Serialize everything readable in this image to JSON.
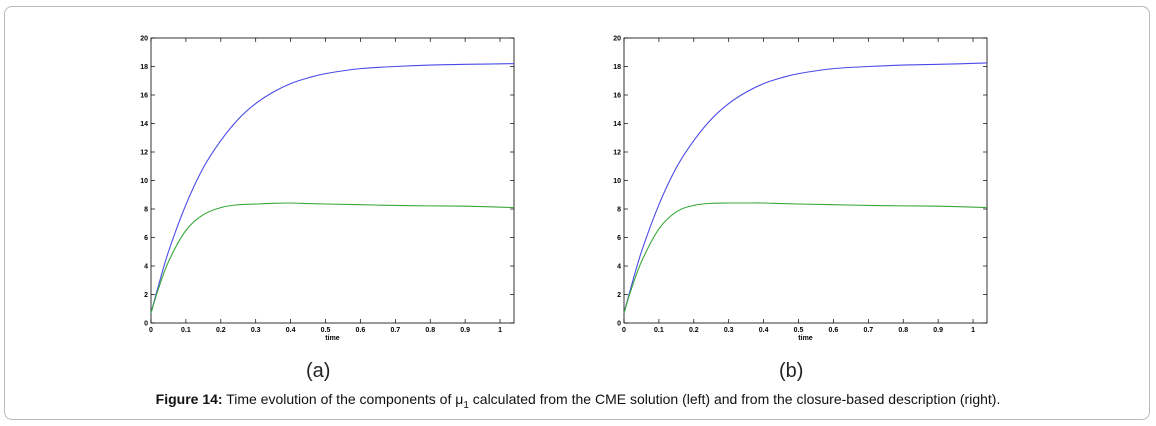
{
  "figure": {
    "panel_labels": [
      "(a)",
      "(b)"
    ],
    "caption": {
      "label": "Figure 14:",
      "text_before": " Time evolution of the components of μ",
      "subscript": "1",
      "text_after": " calculated from the CME solution (left) and from the closure-based description (right)."
    }
  },
  "chart_data": [
    {
      "type": "line",
      "xlabel": "time",
      "ylabel": "",
      "xlim": [
        0,
        1.04
      ],
      "ylim": [
        0,
        20
      ],
      "xticks": [
        0,
        0.1,
        0.2,
        0.3,
        0.4,
        0.5,
        0.6,
        0.7,
        0.8,
        0.9,
        1
      ],
      "yticks": [
        0,
        2,
        4,
        6,
        8,
        10,
        12,
        14,
        16,
        18,
        20
      ],
      "grid": false,
      "series": [
        {
          "color": "#4a4ae8",
          "x": [
            0,
            0.02,
            0.05,
            0.1,
            0.15,
            0.2,
            0.25,
            0.3,
            0.35,
            0.4,
            0.45,
            0.5,
            0.6,
            0.7,
            0.8,
            0.9,
            1.04
          ],
          "y": [
            0.7,
            2.5,
            5.0,
            8.3,
            10.9,
            12.8,
            14.3,
            15.4,
            16.2,
            16.8,
            17.2,
            17.5,
            17.85,
            18.0,
            18.1,
            18.15,
            18.2
          ]
        },
        {
          "color": "#3aa83a",
          "x": [
            0,
            0.02,
            0.05,
            0.1,
            0.15,
            0.2,
            0.25,
            0.3,
            0.35,
            0.4,
            0.45,
            0.5,
            0.6,
            0.7,
            0.8,
            0.9,
            1.04
          ],
          "y": [
            0.7,
            2.3,
            4.3,
            6.5,
            7.6,
            8.1,
            8.3,
            8.35,
            8.4,
            8.42,
            8.38,
            8.35,
            8.3,
            8.25,
            8.22,
            8.2,
            8.1
          ]
        }
      ]
    },
    {
      "type": "line",
      "xlabel": "time",
      "ylabel": "",
      "xlim": [
        0,
        1.04
      ],
      "ylim": [
        0,
        20
      ],
      "xticks": [
        0,
        0.1,
        0.2,
        0.3,
        0.4,
        0.5,
        0.6,
        0.7,
        0.8,
        0.9,
        1
      ],
      "yticks": [
        0,
        2,
        4,
        6,
        8,
        10,
        12,
        14,
        16,
        18,
        20
      ],
      "grid": false,
      "series": [
        {
          "color": "#4a4ae8",
          "x": [
            0,
            0.02,
            0.05,
            0.1,
            0.15,
            0.2,
            0.25,
            0.3,
            0.35,
            0.4,
            0.45,
            0.5,
            0.6,
            0.7,
            0.8,
            0.9,
            1.04
          ],
          "y": [
            0.7,
            2.5,
            5.0,
            8.3,
            10.9,
            12.8,
            14.3,
            15.4,
            16.2,
            16.8,
            17.2,
            17.5,
            17.85,
            18.0,
            18.1,
            18.15,
            18.25
          ]
        },
        {
          "color": "#3aa83a",
          "x": [
            0,
            0.02,
            0.05,
            0.1,
            0.15,
            0.2,
            0.25,
            0.3,
            0.35,
            0.4,
            0.45,
            0.5,
            0.6,
            0.7,
            0.8,
            0.9,
            1.04
          ],
          "y": [
            0.7,
            2.3,
            4.3,
            6.6,
            7.8,
            8.25,
            8.4,
            8.42,
            8.42,
            8.42,
            8.38,
            8.35,
            8.3,
            8.25,
            8.22,
            8.2,
            8.1
          ]
        }
      ]
    }
  ]
}
